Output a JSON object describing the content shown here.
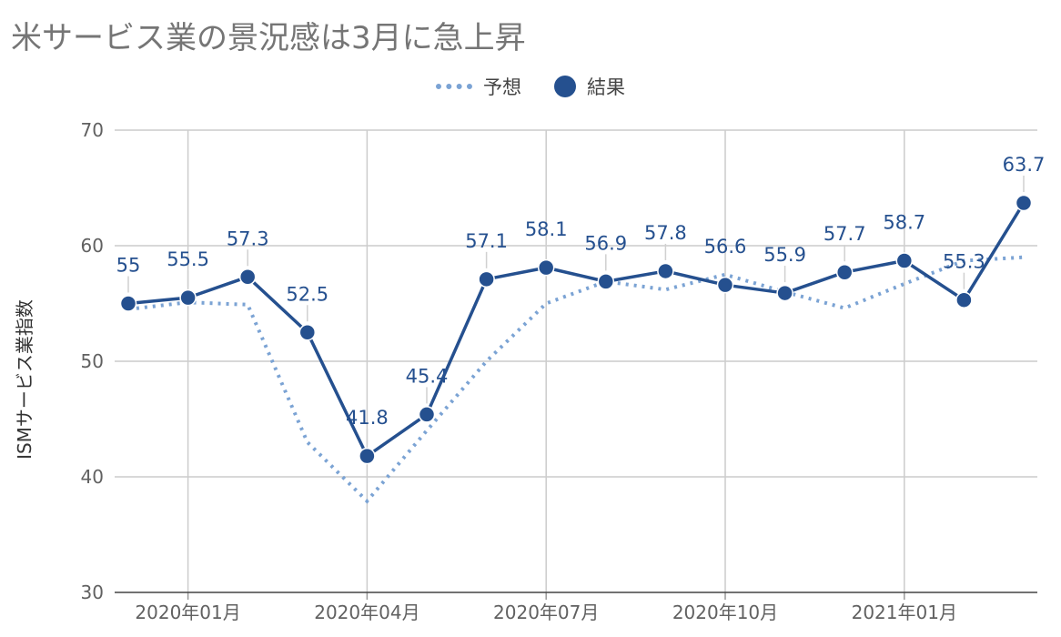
{
  "title": "米サービス業の景況感は3月に急上昇",
  "legend": {
    "forecast_label": "予想",
    "result_label": "結果",
    "position": "top"
  },
  "colors": {
    "forecast": "#7ba3d4",
    "result": "#25508f",
    "grid": "#cccccc",
    "tick_text": "#616161"
  },
  "chart_data": {
    "type": "line",
    "title": "米サービス業の景況感は3月に急上昇",
    "ylabel": "ISMサービス業指数",
    "xlabel": "",
    "ylim": [
      30,
      70
    ],
    "yticks": [
      30,
      40,
      50,
      60,
      70
    ],
    "x": [
      "2019-12",
      "2020-01",
      "2020-02",
      "2020-03",
      "2020-04",
      "2020-05",
      "2020-06",
      "2020-07",
      "2020-08",
      "2020-09",
      "2020-10",
      "2020-11",
      "2020-12",
      "2021-01",
      "2021-02",
      "2021-03"
    ],
    "x_tick_labels": [
      {
        "x": "2020-01",
        "label": "2020年01月"
      },
      {
        "x": "2020-04",
        "label": "2020年04月"
      },
      {
        "x": "2020-07",
        "label": "2020年07月"
      },
      {
        "x": "2020-10",
        "label": "2020年10月"
      },
      {
        "x": "2021-01",
        "label": "2021年01月"
      }
    ],
    "grid": true,
    "series": [
      {
        "name": "予想",
        "style": "dotted",
        "values": [
          54.5,
          55.1,
          54.9,
          43.0,
          37.9,
          44.0,
          50.0,
          55.0,
          56.9,
          56.2,
          57.5,
          56.0,
          54.6,
          56.7,
          58.7,
          59.0
        ]
      },
      {
        "name": "結果",
        "style": "solid-markers",
        "values": [
          55,
          55.5,
          57.3,
          52.5,
          41.8,
          45.4,
          57.1,
          58.1,
          56.9,
          57.8,
          56.6,
          55.9,
          57.7,
          58.7,
          55.3,
          63.7
        ],
        "data_labels": [
          "55",
          "55.5",
          "57.3",
          "52.5",
          "41.8",
          "45.4",
          "57.1",
          "58.1",
          "56.9",
          "57.8",
          "56.6",
          "55.9",
          "57.7",
          "58.7",
          "55.3",
          "63.7"
        ]
      }
    ]
  }
}
